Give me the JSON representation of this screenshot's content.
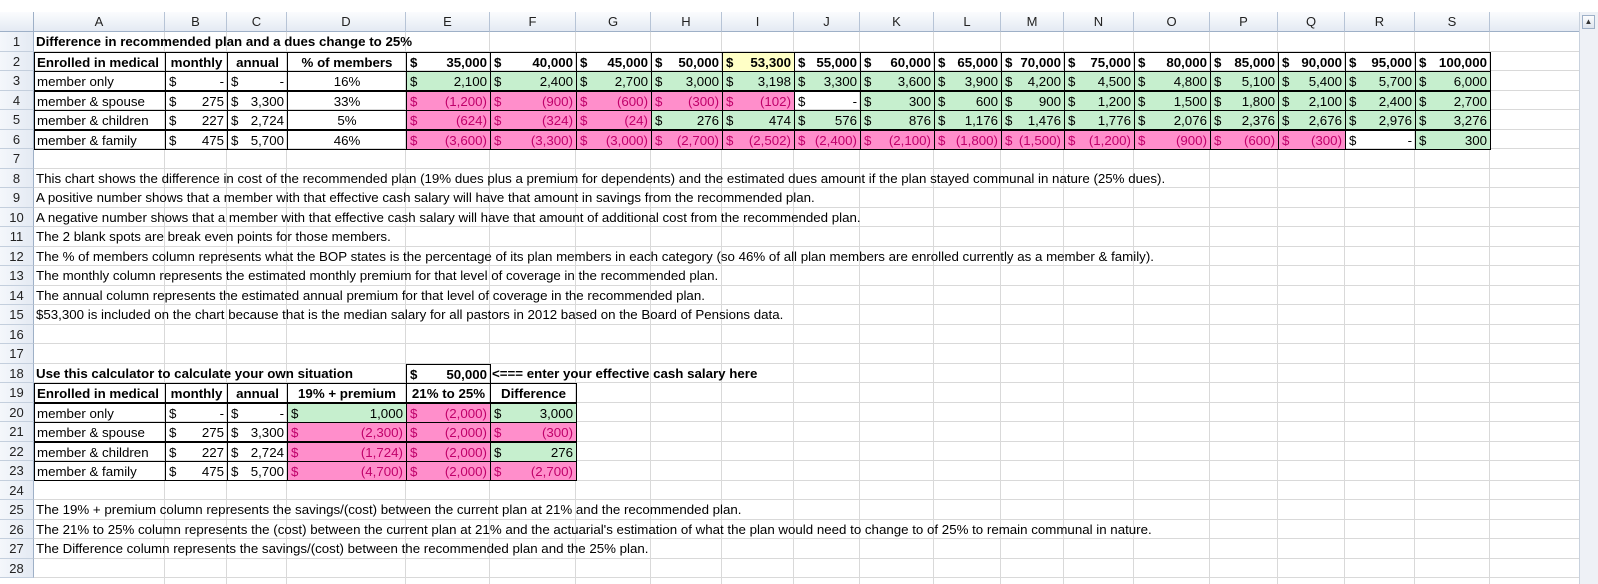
{
  "columns": [
    "A",
    "B",
    "C",
    "D",
    "E",
    "F",
    "G",
    "H",
    "I",
    "J",
    "K",
    "L",
    "M",
    "N",
    "O",
    "P",
    "Q",
    "R",
    "S"
  ],
  "rows": [
    "1",
    "2",
    "3",
    "4",
    "5",
    "6",
    "7",
    "8",
    "9",
    "10",
    "11",
    "12",
    "13",
    "14",
    "15",
    "16",
    "17",
    "18",
    "19",
    "20",
    "21",
    "22",
    "23",
    "24",
    "25",
    "26",
    "27",
    "28"
  ],
  "colors": {
    "positive_fill": "#c6efce",
    "negative_fill": "#ff8ecb",
    "negative_text": "#c0006a",
    "highlight_fill": "#ffffc6"
  },
  "main": {
    "title": "Difference in recommended plan and a dues change to 25%",
    "header": {
      "enrolled": "Enrolled in medical",
      "monthly": "monthly",
      "annual": "annual",
      "pct": "% of members",
      "salaries": [
        "35,000",
        "40,000",
        "45,000",
        "50,000",
        "53,300",
        "55,000",
        "60,000",
        "65,000",
        "70,000",
        "75,000",
        "80,000",
        "85,000",
        "90,000",
        "95,000",
        "100,000"
      ]
    },
    "rows": [
      {
        "label": "member only",
        "monthly": "-",
        "annual": "-",
        "pct": "16%",
        "values": [
          "2,100",
          "2,400",
          "2,700",
          "3,000",
          "3,198",
          "3,300",
          "3,600",
          "3,900",
          "4,200",
          "4,500",
          "4,800",
          "5,100",
          "5,400",
          "5,700",
          "6,000"
        ]
      },
      {
        "label": "member & spouse",
        "monthly": "275",
        "annual": "3,300",
        "pct": "33%",
        "values": [
          "(1,200)",
          "(900)",
          "(600)",
          "(300)",
          "(102)",
          "-",
          "300",
          "600",
          "900",
          "1,200",
          "1,500",
          "1,800",
          "2,100",
          "2,400",
          "2,700"
        ]
      },
      {
        "label": "member & children",
        "monthly": "227",
        "annual": "2,724",
        "pct": "5%",
        "values": [
          "(624)",
          "(324)",
          "(24)",
          "276",
          "474",
          "576",
          "876",
          "1,176",
          "1,476",
          "1,776",
          "2,076",
          "2,376",
          "2,676",
          "2,976",
          "3,276"
        ]
      },
      {
        "label": "member & family",
        "monthly": "475",
        "annual": "5,700",
        "pct": "46%",
        "values": [
          "(3,600)",
          "(3,300)",
          "(3,000)",
          "(2,700)",
          "(2,502)",
          "(2,400)",
          "(2,100)",
          "(1,800)",
          "(1,500)",
          "(1,200)",
          "(900)",
          "(600)",
          "(300)",
          "-",
          "300"
        ]
      }
    ]
  },
  "notes": [
    "This chart shows the difference in cost of the recommended plan (19% dues plus a premium for dependents) and the estimated dues amount if the plan stayed communal in nature (25% dues).",
    "A positive number shows that a member with that effective cash salary will have that amount in savings from the recommended plan.",
    "A negative number shows that a member with that effective cash salary will have that amount of additional cost from the recommended plan.",
    "The 2 blank spots are break even points for those members.",
    "The % of members column represents what the BOP states is the percentage of its plan members in each category (so 46% of all plan members are enrolled currently as a member & family).",
    "The monthly column represents the estimated monthly premium for that level of coverage in the recommended plan.",
    "The annual column represents the estimated annual premium for that level of coverage in the recommended plan.",
    "$53,300 is included on the chart because that is the median salary for all pastors in 2012 based on the Board of Pensions data."
  ],
  "calculator": {
    "title": "Use this calculator to calculate your own situation",
    "salary": "50,000",
    "hint": "<=== enter your effective cash salary here",
    "header": {
      "enrolled": "Enrolled in medical",
      "monthly": "monthly",
      "annual": "annual",
      "plan": "19% + premium",
      "dues": "21% to 25%",
      "diff": "Difference"
    },
    "rows": [
      {
        "label": "member only",
        "monthly": "-",
        "annual": "-",
        "plan": "1,000",
        "dues": "(2,000)",
        "diff": "3,000"
      },
      {
        "label": "member & spouse",
        "monthly": "275",
        "annual": "3,300",
        "plan": "(2,300)",
        "dues": "(2,000)",
        "diff": "(300)"
      },
      {
        "label": "member & children",
        "monthly": "227",
        "annual": "2,724",
        "plan": "(1,724)",
        "dues": "(2,000)",
        "diff": "276"
      },
      {
        "label": "member & family",
        "monthly": "475",
        "annual": "5,700",
        "plan": "(4,700)",
        "dues": "(2,000)",
        "diff": "(2,700)"
      }
    ]
  },
  "bottom_notes": [
    "The 19% + premium column represents the savings/(cost) between the current plan at 21% and the recommended plan.",
    "The 21% to 25% column represents the (cost) between the current plan at 21% and the actuarial's estimation of what the plan would need to change to of 25% to remain communal in nature.",
    "The Difference column represents the savings/(cost) between the recommended plan and the 25% plan."
  ],
  "currency_symbol": "$"
}
